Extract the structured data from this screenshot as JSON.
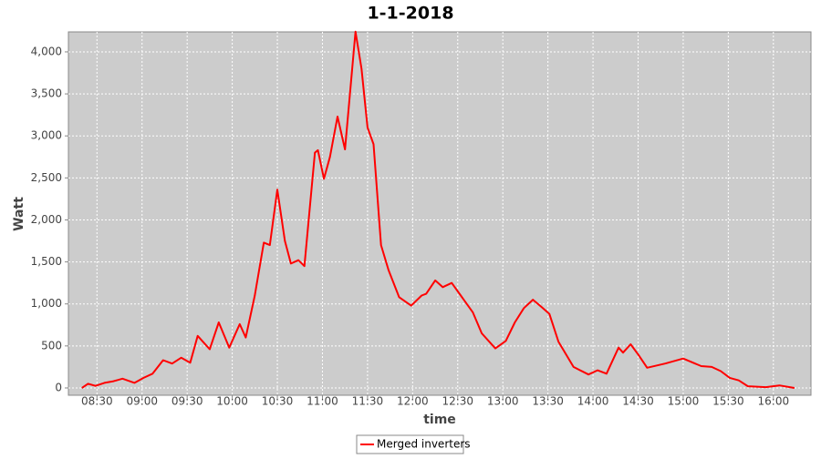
{
  "chart_data": {
    "type": "line",
    "title": "1-1-2018",
    "x_label": "time",
    "y_label": "Watt",
    "x": [
      "08:20",
      "08:24",
      "08:29",
      "08:35",
      "08:41",
      "08:47",
      "08:55",
      "09:01",
      "09:07",
      "09:14",
      "09:20",
      "09:26",
      "09:32",
      "09:37",
      "09:45",
      "09:51",
      "09:58",
      "10:05",
      "10:09",
      "10:15",
      "10:21",
      "10:25",
      "10:30",
      "10:35",
      "10:39",
      "10:44",
      "10:48",
      "10:55",
      "10:57",
      "11:01",
      "11:05",
      "11:10",
      "11:15",
      "11:22",
      "11:26",
      "11:30",
      "11:34",
      "11:39",
      "11:44",
      "11:51",
      "11:59",
      "12:06",
      "12:09",
      "12:15",
      "12:20",
      "12:26",
      "12:32",
      "12:40",
      "12:46",
      "12:55",
      "13:02",
      "13:08",
      "13:14",
      "13:20",
      "13:26",
      "13:31",
      "13:37",
      "13:47",
      "13:57",
      "14:03",
      "14:09",
      "14:17",
      "14:20",
      "14:25",
      "14:30",
      "14:36",
      "14:48",
      "15:00",
      "15:12",
      "15:19",
      "15:25",
      "15:31",
      "15:37",
      "15:43",
      "15:55",
      "16:04",
      "16:14"
    ],
    "series": [
      {
        "name": "Merged inverters",
        "color": "#ff0000",
        "values": [
          0,
          50,
          25,
          60,
          80,
          110,
          60,
          120,
          170,
          330,
          290,
          360,
          300,
          620,
          460,
          780,
          480,
          760,
          600,
          1100,
          1730,
          1700,
          2360,
          1750,
          1480,
          1520,
          1450,
          2800,
          2830,
          2490,
          2750,
          3230,
          2840,
          4240,
          3800,
          3100,
          2900,
          1700,
          1400,
          1080,
          980,
          1100,
          1120,
          1280,
          1200,
          1250,
          1100,
          900,
          650,
          470,
          560,
          780,
          950,
          1050,
          960,
          880,
          550,
          250,
          160,
          210,
          170,
          480,
          420,
          520,
          400,
          240,
          290,
          350,
          260,
          250,
          200,
          120,
          90,
          20,
          10,
          30,
          0
        ]
      }
    ],
    "xlim": [
      "08:11",
      "16:25"
    ],
    "xticks": [
      "08:30",
      "09:00",
      "09:30",
      "10:00",
      "10:30",
      "11:00",
      "11:30",
      "12:00",
      "12:30",
      "13:00",
      "13:30",
      "14:00",
      "14:30",
      "15:00",
      "15:30",
      "16:00"
    ],
    "ylim": [
      -87,
      4238
    ],
    "yticks": [
      0,
      500,
      {
        "value": 1000,
        "label": "1,000"
      },
      {
        "value": 1500,
        "label": "1,500"
      },
      {
        "value": 2000,
        "label": "2,000"
      },
      {
        "value": 2500,
        "label": "2,500"
      },
      {
        "value": 3000,
        "label": "3,000"
      },
      {
        "value": 3500,
        "label": "3,500"
      },
      {
        "value": 4000,
        "label": "4,000"
      }
    ],
    "grid": true,
    "legend": "bottom"
  }
}
